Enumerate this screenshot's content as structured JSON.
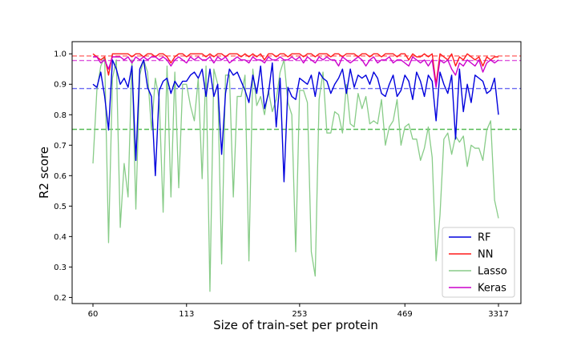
{
  "chart_data": {
    "type": "line",
    "title": "",
    "xlabel": "Size of train-set per protein",
    "ylabel": "R2 score",
    "x_ticks": [
      "60",
      "113",
      "253",
      "469",
      "3317"
    ],
    "x_tick_index": [
      0,
      24,
      53,
      80,
      104
    ],
    "n_points": 105,
    "ylim": [
      0.18,
      1.04
    ],
    "y_ticks": [
      0.2,
      0.3,
      0.4,
      0.5,
      0.6,
      0.7,
      0.8,
      0.9,
      1.0
    ],
    "y_tick_labels": [
      "0.2",
      "0.3",
      "0.4",
      "0.5",
      "0.6",
      "0.7",
      "0.8",
      "0.9",
      "1.0"
    ],
    "grid": false,
    "legend_position": "lower right",
    "series": [
      {
        "name": "RF",
        "color": "#0000dd",
        "values": [
          0.9,
          0.89,
          0.94,
          0.86,
          0.75,
          0.98,
          0.95,
          0.9,
          0.92,
          0.89,
          0.96,
          0.65,
          0.95,
          0.98,
          0.89,
          0.86,
          0.6,
          0.88,
          0.91,
          0.92,
          0.87,
          0.91,
          0.89,
          0.91,
          0.91,
          0.93,
          0.94,
          0.92,
          0.95,
          0.86,
          0.95,
          0.86,
          0.9,
          0.67,
          0.87,
          0.95,
          0.93,
          0.94,
          0.91,
          0.88,
          0.84,
          0.93,
          0.87,
          0.96,
          0.82,
          0.87,
          0.97,
          0.76,
          0.92,
          0.58,
          0.89,
          0.86,
          0.85,
          0.92,
          0.91,
          0.9,
          0.93,
          0.86,
          0.94,
          0.92,
          0.91,
          0.87,
          0.9,
          0.92,
          0.95,
          0.87,
          0.95,
          0.89,
          0.93,
          0.92,
          0.93,
          0.9,
          0.94,
          0.92,
          0.87,
          0.86,
          0.9,
          0.93,
          0.86,
          0.88,
          0.93,
          0.91,
          0.85,
          0.94,
          0.91,
          0.86,
          0.93,
          0.91,
          0.78,
          0.94,
          0.9,
          0.87,
          0.93,
          0.72,
          0.95,
          0.81,
          0.9,
          0.84,
          0.93,
          0.92,
          0.91,
          0.87,
          0.88,
          0.92,
          0.8
        ]
      },
      {
        "name": "NN",
        "color": "#ff1a1a",
        "values": [
          1.0,
          0.99,
          0.98,
          0.99,
          0.93,
          1.0,
          1.0,
          1.0,
          1.0,
          1.0,
          0.99,
          1.0,
          1.0,
          0.99,
          1.0,
          1.0,
          0.99,
          1.0,
          1.0,
          0.99,
          0.97,
          0.99,
          1.0,
          1.0,
          0.99,
          1.0,
          1.0,
          1.0,
          1.0,
          0.99,
          1.0,
          0.99,
          1.0,
          1.0,
          0.99,
          1.0,
          1.0,
          1.0,
          0.99,
          1.0,
          0.99,
          1.0,
          0.99,
          1.0,
          0.98,
          1.0,
          1.0,
          0.99,
          1.0,
          1.0,
          0.99,
          1.0,
          1.0,
          1.0,
          0.99,
          1.0,
          1.0,
          0.99,
          1.0,
          1.0,
          1.0,
          0.99,
          1.0,
          1.0,
          0.99,
          1.0,
          1.0,
          1.0,
          0.99,
          1.0,
          1.0,
          0.99,
          1.0,
          1.0,
          0.99,
          1.0,
          1.0,
          1.0,
          0.99,
          1.0,
          1.0,
          0.98,
          1.0,
          0.99,
          0.99,
          1.0,
          0.99,
          1.0,
          0.9,
          1.0,
          0.99,
          0.98,
          1.0,
          0.96,
          0.99,
          0.98,
          1.0,
          0.99,
          0.98,
          0.99,
          0.96,
          0.99,
          0.98,
          0.99,
          0.99
        ]
      },
      {
        "name": "Lasso",
        "color": "#88cc88",
        "values": [
          0.64,
          0.88,
          0.96,
          0.99,
          0.38,
          0.92,
          0.98,
          0.43,
          0.64,
          0.53,
          0.98,
          0.49,
          0.93,
          0.98,
          0.94,
          0.75,
          0.92,
          0.85,
          0.48,
          0.96,
          0.53,
          0.94,
          0.56,
          0.9,
          0.9,
          0.83,
          0.78,
          0.92,
          0.59,
          0.96,
          0.22,
          0.95,
          0.9,
          0.31,
          0.93,
          0.93,
          0.53,
          0.86,
          0.86,
          0.93,
          0.32,
          0.95,
          0.83,
          0.86,
          0.8,
          0.88,
          0.81,
          0.85,
          0.94,
          0.98,
          0.84,
          0.8,
          0.35,
          0.88,
          0.88,
          0.84,
          0.35,
          0.27,
          0.85,
          0.94,
          0.74,
          0.74,
          0.81,
          0.8,
          0.74,
          0.9,
          0.77,
          0.76,
          0.87,
          0.82,
          0.86,
          0.77,
          0.78,
          0.77,
          0.85,
          0.7,
          0.76,
          0.78,
          0.85,
          0.7,
          0.76,
          0.77,
          0.72,
          0.72,
          0.65,
          0.69,
          0.76,
          0.66,
          0.32,
          0.47,
          0.72,
          0.74,
          0.67,
          0.73,
          0.71,
          0.73,
          0.63,
          0.7,
          0.69,
          0.69,
          0.65,
          0.75,
          0.78,
          0.52,
          0.46
        ]
      },
      {
        "name": "Keras",
        "color": "#cc00cc",
        "values": [
          0.99,
          0.99,
          0.97,
          0.98,
          0.95,
          0.99,
          0.99,
          0.99,
          0.98,
          0.99,
          0.97,
          0.99,
          0.98,
          0.99,
          0.98,
          0.99,
          0.99,
          0.98,
          0.99,
          0.98,
          0.96,
          0.98,
          0.99,
          0.98,
          0.97,
          0.99,
          0.98,
          0.99,
          0.98,
          0.98,
          0.99,
          0.97,
          0.99,
          0.98,
          0.99,
          0.97,
          0.98,
          0.99,
          0.98,
          0.98,
          0.97,
          0.99,
          0.98,
          0.98,
          0.97,
          0.99,
          0.98,
          0.98,
          0.99,
          0.98,
          0.98,
          0.99,
          0.98,
          0.99,
          0.97,
          0.99,
          0.98,
          0.97,
          0.99,
          0.98,
          0.99,
          0.98,
          0.98,
          0.96,
          0.99,
          0.98,
          0.97,
          0.98,
          0.99,
          0.98,
          0.96,
          0.98,
          0.99,
          0.97,
          0.98,
          0.98,
          0.99,
          0.97,
          0.98,
          0.98,
          0.97,
          0.96,
          0.99,
          0.98,
          0.97,
          0.98,
          0.96,
          0.98,
          0.89,
          0.98,
          0.97,
          0.98,
          0.95,
          0.93,
          0.97,
          0.96,
          0.98,
          0.97,
          0.96,
          0.98,
          0.94,
          0.97,
          0.98,
          0.97,
          0.98
        ]
      }
    ],
    "reference_lines": [
      {
        "series": "NN",
        "color": "#ff7777",
        "y": 0.993
      },
      {
        "series": "Keras",
        "color": "#dd55dd",
        "y": 0.978
      },
      {
        "series": "RF",
        "color": "#6a6af2",
        "y": 0.886
      },
      {
        "series": "Lasso",
        "color": "#55bb55",
        "y": 0.752
      }
    ]
  }
}
